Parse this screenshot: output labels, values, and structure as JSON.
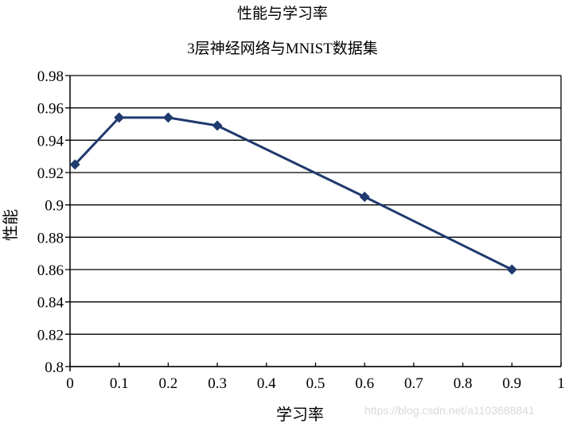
{
  "chart_data": {
    "type": "line",
    "title": "性能与学习率",
    "subtitle": "3层神经网络与MNIST数据集",
    "xlabel": "学习率",
    "ylabel": "性能",
    "xlim": [
      0,
      1
    ],
    "ylim": [
      0.8,
      0.98
    ],
    "xticks": [
      "0",
      "0.1",
      "0.2",
      "0.3",
      "0.4",
      "0.5",
      "0.6",
      "0.7",
      "0.8",
      "0.9",
      "1"
    ],
    "yticks": [
      "0.8",
      "0.82",
      "0.84",
      "0.86",
      "0.88",
      "0.9",
      "0.92",
      "0.94",
      "0.96",
      "0.98"
    ],
    "grid": {
      "horizontal": true,
      "vertical": false
    },
    "legend": null,
    "series": [
      {
        "name": "性能",
        "color": "#1f3a6e",
        "marker": "diamond",
        "x": [
          0.01,
          0.1,
          0.2,
          0.3,
          0.6,
          0.9
        ],
        "y": [
          0.925,
          0.954,
          0.954,
          0.949,
          0.905,
          0.86
        ]
      }
    ]
  },
  "watermark": "https://blog.csdn.net/a1103688841"
}
